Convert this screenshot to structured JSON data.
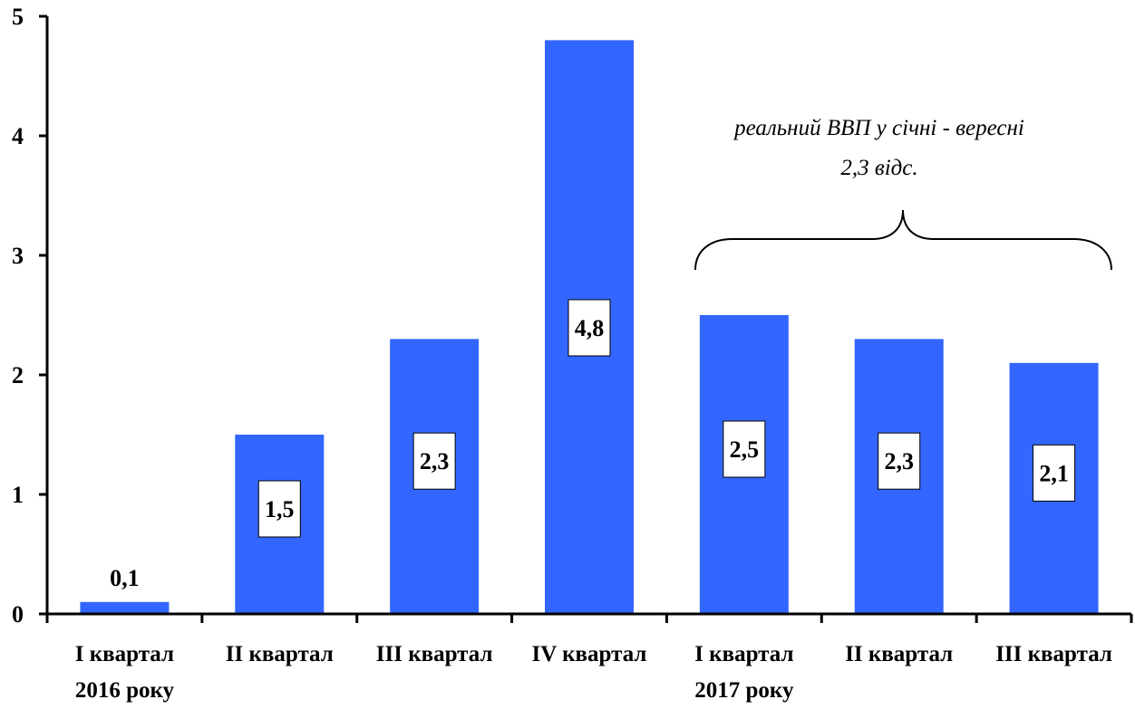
{
  "chart_data": {
    "type": "bar",
    "categories": [
      [
        "I квартал",
        "2016 року"
      ],
      [
        "II квартал"
      ],
      [
        "III квартал"
      ],
      [
        "IV квартал"
      ],
      [
        "I квартал",
        "2017 року"
      ],
      [
        "II квартал"
      ],
      [
        "III квартал"
      ]
    ],
    "values": [
      0.1,
      1.5,
      2.3,
      4.8,
      2.5,
      2.3,
      2.1
    ],
    "data_labels": [
      "0,1",
      "1,5",
      "2,3",
      "4,8",
      "2,5",
      "2,3",
      "2,1"
    ],
    "yticks": [
      "0",
      "1",
      "2",
      "3",
      "4",
      "5"
    ],
    "ylim": [
      0,
      5
    ],
    "bar_color": "#3366FF",
    "grid": false,
    "legend": "none",
    "annotation": {
      "lines": [
        "реальний ВВП у січні - вересні",
        "2,3 відс."
      ],
      "spans_categories": [
        4,
        6
      ]
    }
  }
}
